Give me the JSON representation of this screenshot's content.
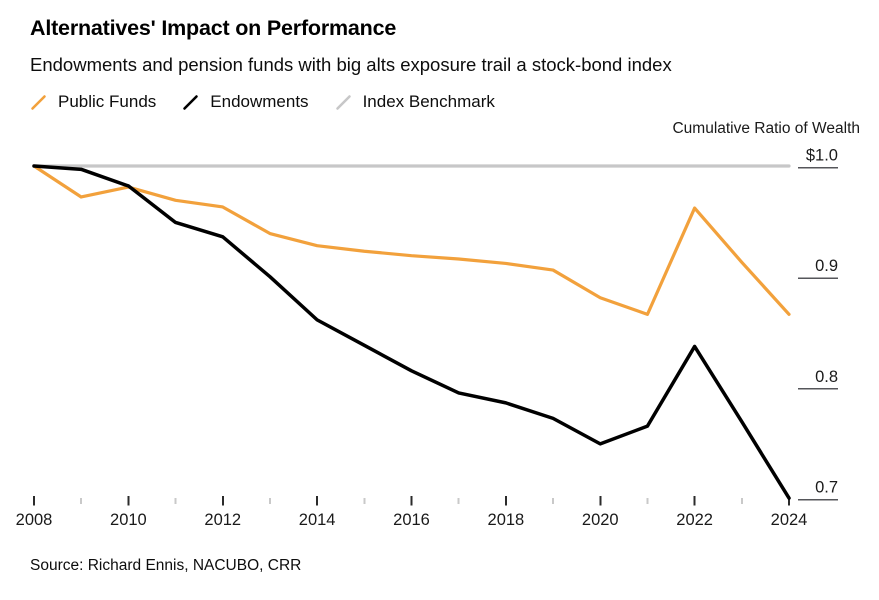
{
  "title": "Alternatives' Impact on Performance",
  "subtitle": "Endowments and pension funds with big alts exposure trail a stock-bond index",
  "y_axis_title": "Cumulative Ratio of Wealth",
  "source": "Source: Richard Ennis, NACUBO, CRR",
  "colors": {
    "public_funds": "#F2A13C",
    "endowments": "#000000",
    "index_benchmark": "#C7C7C8",
    "tick_major": "#2B2B2B",
    "tick_minor": "#C9C9C9",
    "y_tick_rule": "#55565A",
    "background": "#FFFFFF"
  },
  "legend": [
    {
      "label": "Public Funds",
      "color": "#F2A13C"
    },
    {
      "label": "Endowments",
      "color": "#000000"
    },
    {
      "label": "Index Benchmark",
      "color": "#C7C7C8"
    }
  ],
  "chart_data": {
    "type": "line",
    "title": "Alternatives' Impact on Performance",
    "subtitle": "Endowments and pension funds with big alts exposure trail a stock-bond index",
    "xlabel": "",
    "ylabel": "Cumulative Ratio of Wealth",
    "grid": false,
    "legend_position": "top",
    "xlim": [
      2008,
      2024
    ],
    "ylim": [
      0.69,
      1.0
    ],
    "x": [
      2008,
      2009,
      2010,
      2011,
      2012,
      2013,
      2014,
      2015,
      2016,
      2017,
      2018,
      2019,
      2020,
      2021,
      2022,
      2023,
      2024
    ],
    "series": [
      {
        "name": "Public Funds",
        "color": "#F2A13C",
        "values": [
          1.0,
          0.972,
          0.981,
          0.969,
          0.963,
          0.939,
          0.928,
          0.923,
          0.919,
          0.916,
          0.912,
          0.906,
          0.881,
          0.866,
          0.962,
          0.913,
          0.866
        ]
      },
      {
        "name": "Endowments",
        "color": "#000000",
        "values": [
          1.0,
          0.997,
          0.982,
          0.949,
          0.936,
          0.9,
          0.861,
          0.838,
          0.815,
          0.795,
          0.786,
          0.772,
          0.749,
          0.765,
          0.837,
          0.769,
          0.7
        ]
      },
      {
        "name": "Index Benchmark",
        "color": "#C7C7C8",
        "values": [
          1.0,
          1.0,
          1.0,
          1.0,
          1.0,
          1.0,
          1.0,
          1.0,
          1.0,
          1.0,
          1.0,
          1.0,
          1.0,
          1.0,
          1.0,
          1.0,
          1.0
        ]
      }
    ],
    "y_ticks": [
      {
        "label": "$1.0",
        "value": 1.0
      },
      {
        "label": "0.9",
        "value": 0.9
      },
      {
        "label": "0.8",
        "value": 0.8
      },
      {
        "label": "0.7",
        "value": 0.7
      }
    ],
    "x_labeled_ticks": [
      2008,
      2010,
      2012,
      2014,
      2016,
      2018,
      2020,
      2022,
      2024
    ]
  }
}
